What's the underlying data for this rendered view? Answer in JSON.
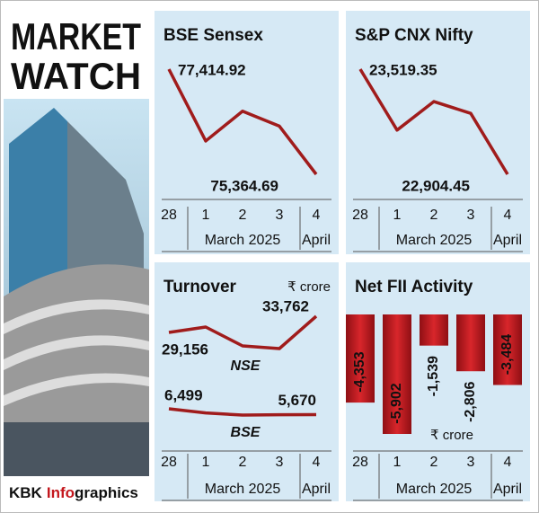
{
  "header": {
    "title_lines": [
      "MARKET",
      "WATCH"
    ],
    "credit": [
      "KBK",
      "Info",
      "graphics"
    ]
  },
  "chart_data": [
    {
      "type": "line",
      "title": "BSE Sensex",
      "categories": [
        "28",
        "1",
        "2",
        "3",
        "4"
      ],
      "months": [
        "March 2025",
        "April"
      ],
      "values": [
        77414.92,
        76014,
        76595,
        76304,
        75364.69
      ],
      "value_labels": [
        "77,414.92",
        null,
        null,
        null,
        "75,364.69"
      ],
      "color": "#a01c1c"
    },
    {
      "type": "line",
      "title": "S&P CNX Nifty",
      "categories": [
        "28",
        "1",
        "2",
        "3",
        "4"
      ],
      "months": [
        "March 2025",
        "April"
      ],
      "values": [
        23519.35,
        23163,
        23330,
        23261,
        22904.45
      ],
      "value_labels": [
        "23,519.35",
        null,
        null,
        null,
        "22,904.45"
      ],
      "color": "#a01c1c"
    },
    {
      "type": "line",
      "title": "Turnover",
      "unit": "₹ crore",
      "categories": [
        "28",
        "1",
        "2",
        "3",
        "4"
      ],
      "months": [
        "March 2025",
        "April"
      ],
      "series": [
        {
          "name": "NSE",
          "color": "#a01c1c",
          "values": [
            29156,
            30692,
            25318,
            24550,
            33762
          ],
          "value_labels": [
            "29,156",
            null,
            null,
            null,
            "33,762"
          ]
        },
        {
          "name": "BSE",
          "color": "#a01c1c",
          "values": [
            6499,
            5900,
            5600,
            5650,
            5670
          ],
          "value_labels": [
            "6,499",
            null,
            null,
            null,
            "5,670"
          ]
        }
      ]
    },
    {
      "type": "bar",
      "title": "Net FII Activity",
      "unit": "₹ crore",
      "categories": [
        "28",
        "1",
        "2",
        "3",
        "4"
      ],
      "months": [
        "March 2025",
        "April"
      ],
      "values": [
        -4353,
        -5902,
        -1539,
        -2806,
        -3484
      ],
      "value_labels": [
        "-4,353",
        "-5,902",
        "-1,539",
        "-2,806",
        "-3,484"
      ],
      "color": "#c4161c"
    }
  ]
}
